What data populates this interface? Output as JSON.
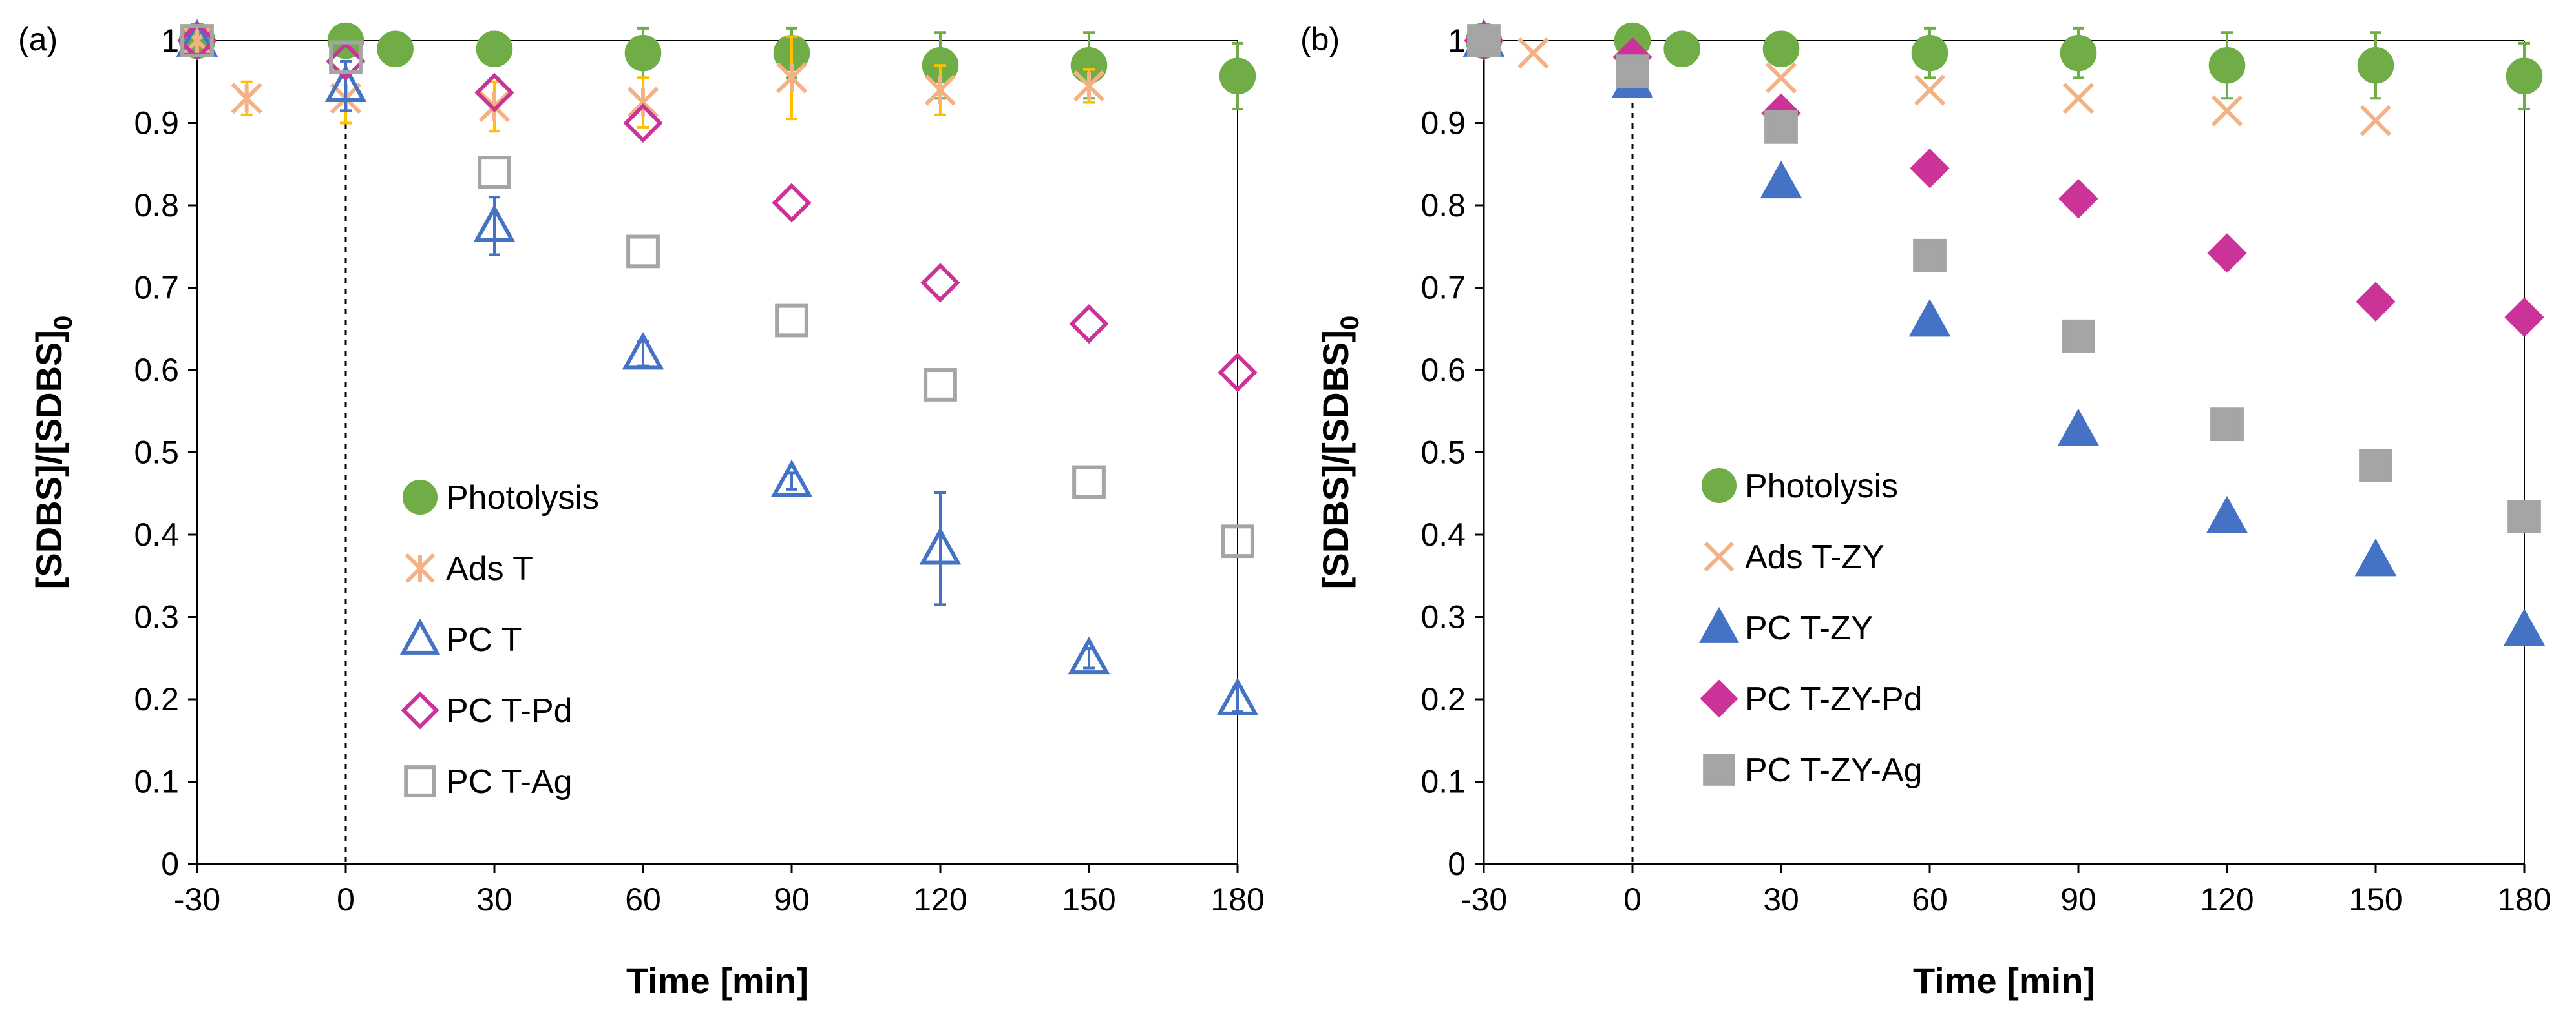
{
  "chart_data": [
    {
      "type": "scatter",
      "panel_label": "(a)",
      "title": "",
      "xlabel": "Time [min]",
      "ylabel_main": "[SDBS]/[SDBS]",
      "ylabel_sub": "0",
      "xlim": [
        -30,
        180
      ],
      "ylim": [
        0,
        1
      ],
      "x_ticks": [
        "-30",
        "0",
        "30",
        "60",
        "90",
        "120",
        "150",
        "180"
      ],
      "y_ticks": [
        "0",
        "0.1",
        "0.2",
        "0.3",
        "0.4",
        "0.5",
        "0.6",
        "0.7",
        "0.8",
        "0.9",
        "1"
      ],
      "grid": false,
      "vertical_reference_x": 0,
      "legend_position": "center-left",
      "series": [
        {
          "name": "Photolysis",
          "marker": "circle",
          "filled": true,
          "color": "#70ad47",
          "x": [
            -30,
            0,
            10,
            30,
            60,
            90,
            120,
            150,
            180
          ],
          "y": [
            1.0,
            1.0,
            0.99,
            0.99,
            0.985,
            0.985,
            0.97,
            0.97,
            0.957
          ],
          "err": [
            0,
            0,
            0,
            0.02,
            0.03,
            0.03,
            0.04,
            0.04,
            0.04
          ]
        },
        {
          "name": "Ads T",
          "marker": "asterisk",
          "filled": false,
          "color": "#f4b183",
          "err_color": "#ffc000",
          "x": [
            -30,
            -20,
            0,
            30,
            60,
            90,
            120,
            150
          ],
          "y": [
            1.0,
            0.93,
            0.93,
            0.92,
            0.925,
            0.955,
            0.94,
            0.945
          ],
          "err": [
            0,
            0.02,
            0.03,
            0.03,
            0.03,
            0.05,
            0.03,
            0.02
          ]
        },
        {
          "name": "PC T",
          "marker": "triangle",
          "filled": false,
          "color": "#4472c4",
          "x": [
            -30,
            0,
            30,
            60,
            90,
            120,
            150,
            180
          ],
          "y": [
            1.0,
            0.945,
            0.775,
            0.62,
            0.465,
            0.383,
            0.25,
            0.2
          ],
          "err": [
            0,
            0.03,
            0.035,
            0.015,
            0.01,
            0.068,
            0.012,
            0.015
          ]
        },
        {
          "name": "PC T-Pd",
          "marker": "diamond",
          "filled": false,
          "color": "#cc3399",
          "x": [
            -30,
            0,
            30,
            60,
            90,
            120,
            150,
            180
          ],
          "y": [
            1.0,
            0.975,
            0.937,
            0.9,
            0.803,
            0.706,
            0.656,
            0.597
          ],
          "err": [
            0,
            0,
            0,
            0,
            0,
            0,
            0,
            0
          ]
        },
        {
          "name": "PC T-Ag",
          "marker": "square",
          "filled": false,
          "color": "#a5a5a5",
          "x": [
            -30,
            0,
            30,
            60,
            90,
            120,
            150,
            180
          ],
          "y": [
            1.0,
            0.98,
            0.84,
            0.744,
            0.66,
            0.582,
            0.464,
            0.392
          ],
          "err": [
            0,
            0,
            0,
            0,
            0,
            0,
            0,
            0
          ]
        }
      ]
    },
    {
      "type": "scatter",
      "panel_label": "(b)",
      "title": "",
      "xlabel": "Time [min]",
      "ylabel_main": "[SDBS]/[SDBS]",
      "ylabel_sub": "0",
      "xlim": [
        -30,
        180
      ],
      "ylim": [
        0,
        1
      ],
      "x_ticks": [
        "-30",
        "0",
        "30",
        "60",
        "90",
        "120",
        "150",
        "180"
      ],
      "y_ticks": [
        "0",
        "0.1",
        "0.2",
        "0.3",
        "0.4",
        "0.5",
        "0.6",
        "0.7",
        "0.8",
        "0.9",
        "1"
      ],
      "grid": false,
      "vertical_reference_x": 0,
      "legend_position": "center-left",
      "series": [
        {
          "name": "Photolysis",
          "marker": "circle",
          "filled": true,
          "color": "#70ad47",
          "x": [
            -30,
            0,
            10,
            30,
            60,
            90,
            120,
            150,
            180
          ],
          "y": [
            1.0,
            1.0,
            0.99,
            0.99,
            0.985,
            0.985,
            0.97,
            0.97,
            0.957
          ],
          "err": [
            0,
            0,
            0,
            0.02,
            0.03,
            0.03,
            0.04,
            0.04,
            0.04
          ]
        },
        {
          "name": "Ads T-ZY",
          "marker": "x",
          "filled": false,
          "color": "#f4b183",
          "x": [
            -30,
            -20,
            0,
            30,
            60,
            90,
            120,
            150
          ],
          "y": [
            1.0,
            0.985,
            0.97,
            0.955,
            0.94,
            0.93,
            0.915,
            0.903
          ],
          "err": [
            0,
            0,
            0,
            0,
            0,
            0,
            0,
            0
          ]
        },
        {
          "name": "PC T-ZY",
          "marker": "triangle",
          "filled": true,
          "color": "#4472c4",
          "x": [
            -30,
            0,
            30,
            60,
            90,
            120,
            150,
            180
          ],
          "y": [
            1.0,
            0.95,
            0.828,
            0.66,
            0.527,
            0.421,
            0.369,
            0.284
          ],
          "err": [
            0,
            0,
            0,
            0,
            0,
            0,
            0,
            0
          ]
        },
        {
          "name": "PC T-ZY-Pd",
          "marker": "diamond",
          "filled": true,
          "color": "#cc3399",
          "x": [
            -30,
            0,
            30,
            60,
            90,
            120,
            150,
            180
          ],
          "y": [
            1.0,
            0.98,
            0.912,
            0.845,
            0.808,
            0.742,
            0.683,
            0.664
          ],
          "err": [
            0,
            0,
            0,
            0,
            0,
            0,
            0,
            0
          ]
        },
        {
          "name": "PC T-ZY-Ag",
          "marker": "square",
          "filled": true,
          "color": "#a5a5a5",
          "x": [
            -30,
            0,
            30,
            60,
            90,
            120,
            150,
            180
          ],
          "y": [
            1.0,
            0.963,
            0.895,
            0.739,
            0.641,
            0.534,
            0.484,
            0.422
          ],
          "err": [
            0,
            0,
            0,
            0,
            0,
            0,
            0,
            0
          ]
        }
      ]
    }
  ]
}
